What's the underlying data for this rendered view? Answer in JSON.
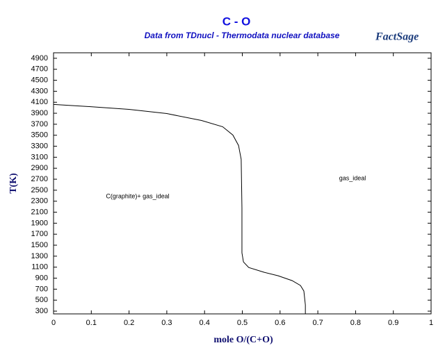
{
  "chart_data": {
    "type": "line",
    "title": "C - O",
    "subtitle": "Data from TDnucl - Thermodata nuclear database",
    "logo": "FactSage",
    "xlabel": "mole O/(C+O)",
    "ylabel": "T(K)",
    "annotations": [
      "C(graphite)+ gas_ideal",
      "gas_ideal"
    ],
    "xlim": [
      0,
      1
    ],
    "xticks": [
      0,
      0.1,
      0.2,
      0.3,
      0.4,
      0.5,
      0.6,
      0.7,
      0.8,
      0.9,
      1
    ],
    "ylim": [
      250,
      5000
    ],
    "yticks": [
      300,
      500,
      700,
      900,
      1100,
      1300,
      1500,
      1700,
      1900,
      2100,
      2300,
      2500,
      2700,
      2900,
      3100,
      3300,
      3500,
      3700,
      3900,
      4100,
      4300,
      4500,
      4700,
      4900
    ],
    "x": [
      0,
      0.098,
      0.2,
      0.3,
      0.392,
      0.448,
      0.475,
      0.49,
      0.497,
      0.499,
      0.499,
      0.503,
      0.517,
      0.558,
      0.595,
      0.632,
      0.654,
      0.663,
      0.667,
      0.667
    ],
    "series": [
      {
        "color": "#000000",
        "values": [
          4060,
          4020,
          3970,
          3894,
          3768,
          3654,
          3503,
          3314,
          3062,
          2180,
          1360,
          1195,
          1094,
          1006,
          943,
          855,
          767,
          666,
          413,
          250
        ]
      }
    ]
  }
}
